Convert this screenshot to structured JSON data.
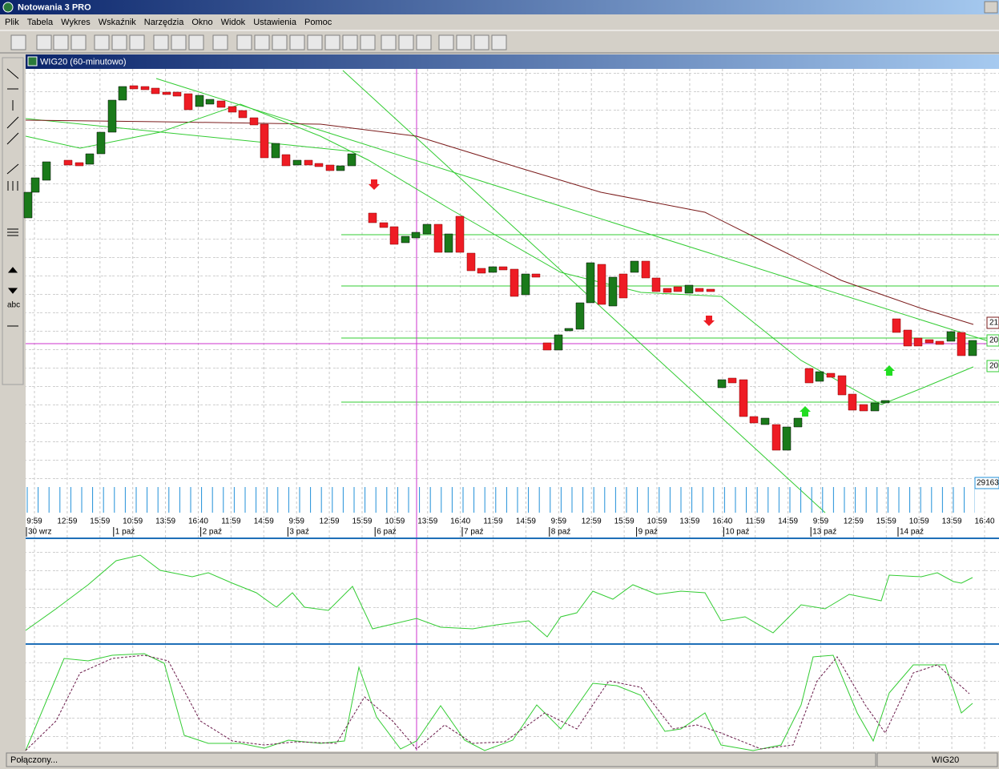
{
  "app": {
    "title": "Notowania 3 PRO",
    "menu": [
      "Plik",
      "Tabela",
      "Wykres",
      "Wskaźnik",
      "Narzędzia",
      "Okno",
      "Widok",
      "Ustawienia",
      "Pomoc"
    ],
    "left_toolbar_label": "abc"
  },
  "chart_window": {
    "title": "WIG20 (60-minutowo)",
    "time_labels": [
      "9:59",
      "12:59",
      "15:59",
      "10:59",
      "13:59",
      "16:40",
      "11:59",
      "14:59",
      "9:59",
      "12:59",
      "15:59",
      "10:59",
      "13:59",
      "16:40",
      "11:59",
      "14:59",
      "9:59",
      "12:59",
      "15:59",
      "10:59",
      "13:59",
      "16:40",
      "11:59",
      "14:59",
      "9:59",
      "12:59",
      "15:59",
      "10:59",
      "13:59",
      "16:40"
    ],
    "date_labels": [
      "30 wrz",
      "1 paź",
      "2 paź",
      "3 paź",
      "6 paź",
      "7 paź",
      "8 paź",
      "9 paź",
      "10 paź",
      "13 paź",
      "14 paź"
    ],
    "price_labels": [
      "21",
      "20",
      "20"
    ],
    "volume_label": "29163"
  },
  "status_bar": {
    "status": "Połączony...",
    "symbol": "WIG20"
  }
}
